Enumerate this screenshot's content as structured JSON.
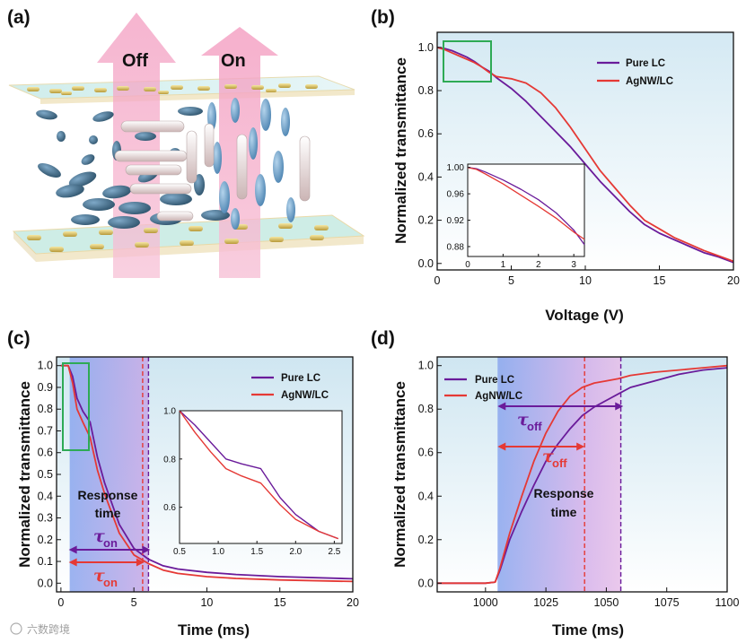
{
  "colors": {
    "pure": "#6a1b9a",
    "agnw": "#e53935",
    "inset_box": "#2eaa55",
    "axis": "#111111"
  },
  "panel_a": {
    "letter": "(a)",
    "off_label": "Off",
    "on_label": "On"
  },
  "watermark": "六数跨境",
  "chart_data": [
    {
      "id": "b",
      "letter": "(b)",
      "type": "line",
      "xlabel": "Voltage (V)",
      "ylabel": "Normalized transmittance",
      "xlim": [
        0,
        20
      ],
      "ylim": [
        -0.03,
        1.07
      ],
      "xticks": [
        0,
        5,
        10,
        15,
        20
      ],
      "yticks": [
        0.0,
        0.2,
        0.4,
        0.6,
        0.8,
        1.0
      ],
      "ytick_labels": [
        "0.0",
        "0.2",
        "0.4",
        "0.6",
        "0.8",
        "1.0"
      ],
      "series": [
        {
          "name": "Pure LC",
          "color": "#6a1b9a",
          "x": [
            0,
            0.5,
            1,
            1.5,
            2,
            2.5,
            3,
            3.5,
            4,
            5,
            6,
            7,
            8,
            9,
            10,
            11,
            12,
            13,
            14,
            15,
            16,
            17,
            18,
            19,
            20
          ],
          "y": [
            1.0,
            0.995,
            0.985,
            0.97,
            0.955,
            0.935,
            0.91,
            0.89,
            0.86,
            0.81,
            0.75,
            0.68,
            0.61,
            0.54,
            0.46,
            0.38,
            0.31,
            0.24,
            0.18,
            0.14,
            0.11,
            0.08,
            0.05,
            0.03,
            0.005
          ]
        },
        {
          "name": "AgNW/LC",
          "color": "#e53935",
          "x": [
            0,
            0.5,
            1,
            1.5,
            2,
            2.5,
            3,
            3.5,
            4,
            5,
            6,
            7,
            8,
            9,
            10,
            11,
            12,
            13,
            14,
            15,
            16,
            17,
            18,
            19,
            20
          ],
          "y": [
            1.0,
            0.99,
            0.975,
            0.96,
            0.945,
            0.93,
            0.91,
            0.885,
            0.865,
            0.855,
            0.835,
            0.79,
            0.72,
            0.63,
            0.53,
            0.43,
            0.35,
            0.27,
            0.2,
            0.16,
            0.12,
            0.09,
            0.06,
            0.035,
            0.01
          ]
        }
      ],
      "legend": "top-right",
      "inset": {
        "xlim": [
          0,
          3.3
        ],
        "ylim": [
          0.865,
          1.005
        ],
        "xticks": [
          0,
          1,
          2,
          3
        ],
        "yticks": [
          0.88,
          0.92,
          0.96,
          1.0
        ],
        "ytick_labels": [
          "0.88",
          "0.92",
          "0.96",
          "1.00"
        ],
        "series": [
          {
            "name": "Pure LC",
            "x": [
              0,
              0.25,
              0.5,
              1,
              1.5,
              2,
              2.5,
              3,
              3.3
            ],
            "y": [
              1.0,
              0.998,
              0.993,
              0.981,
              0.967,
              0.951,
              0.931,
              0.905,
              0.883
            ]
          },
          {
            "name": "AgNW/LC",
            "x": [
              0,
              0.25,
              0.5,
              1,
              1.5,
              2,
              2.5,
              3,
              3.3
            ],
            "y": [
              1.0,
              0.997,
              0.99,
              0.975,
              0.958,
              0.941,
              0.923,
              0.902,
              0.891
            ]
          }
        ]
      }
    },
    {
      "id": "c",
      "letter": "(c)",
      "type": "line",
      "xlabel": "Time (ms)",
      "ylabel": "Normalized transmittance",
      "xlim": [
        -0.3,
        20
      ],
      "ylim": [
        -0.04,
        1.04
      ],
      "xticks": [
        0,
        5,
        10,
        15,
        20
      ],
      "yticks": [
        0.0,
        0.1,
        0.2,
        0.3,
        0.4,
        0.5,
        0.6,
        0.7,
        0.8,
        0.9,
        1.0
      ],
      "ytick_labels": [
        "0.0",
        "0.1",
        "0.2",
        "0.3",
        "0.4",
        "0.5",
        "0.6",
        "0.7",
        "0.8",
        "0.9",
        "1.0"
      ],
      "series": [
        {
          "name": "Pure LC",
          "color": "#6a1b9a",
          "x": [
            0,
            0.5,
            0.8,
            1.1,
            1.5,
            2.0,
            2.5,
            3.0,
            4.0,
            5.0,
            6.0,
            7.0,
            8.0,
            10.0,
            12.0,
            15.0,
            20.0
          ],
          "y": [
            1.0,
            1.0,
            0.95,
            0.85,
            0.79,
            0.74,
            0.58,
            0.46,
            0.27,
            0.16,
            0.11,
            0.08,
            0.065,
            0.05,
            0.04,
            0.03,
            0.02
          ]
        },
        {
          "name": "AgNW/LC",
          "color": "#e53935",
          "x": [
            0,
            0.5,
            0.8,
            1.1,
            1.5,
            2.0,
            2.5,
            3.0,
            4.0,
            5.0,
            6.0,
            7.0,
            8.0,
            10.0,
            12.0,
            15.0,
            20.0
          ],
          "y": [
            1.0,
            1.0,
            0.92,
            0.8,
            0.74,
            0.67,
            0.52,
            0.41,
            0.23,
            0.13,
            0.09,
            0.06,
            0.045,
            0.03,
            0.022,
            0.015,
            0.008
          ]
        }
      ],
      "legend": "top-right",
      "annotations": {
        "response_text": "Response",
        "response_text2": "time",
        "tau_on_purple": {
          "symbol": "τ",
          "sub": "on",
          "end": 6.0
        },
        "tau_on_red": {
          "symbol": "τ",
          "sub": "on",
          "end": 5.6
        },
        "span_start": 0.6,
        "vline_pure": 6.0,
        "vline_agnw": 5.6
      },
      "inset": {
        "xlim": [
          0.5,
          2.6
        ],
        "ylim": [
          0.45,
          1.0
        ],
        "xticks": [
          0.5,
          1.0,
          1.5,
          2.0,
          2.5
        ],
        "yticks": [
          0.6,
          0.8,
          1.0
        ],
        "ytick_labels": [
          "0.6",
          "0.8",
          "1.0"
        ],
        "series": [
          {
            "name": "Pure LC",
            "x": [
              0.5,
              0.7,
              0.9,
              1.1,
              1.3,
              1.55,
              1.8,
              2.0,
              2.3,
              2.55
            ],
            "y": [
              1.0,
              0.94,
              0.87,
              0.8,
              0.78,
              0.76,
              0.64,
              0.57,
              0.5,
              0.47
            ]
          },
          {
            "name": "AgNW/LC",
            "x": [
              0.5,
              0.7,
              0.9,
              1.1,
              1.3,
              1.55,
              1.8,
              2.0,
              2.3,
              2.55
            ],
            "y": [
              1.0,
              0.91,
              0.83,
              0.76,
              0.73,
              0.7,
              0.61,
              0.55,
              0.5,
              0.47
            ]
          }
        ]
      }
    },
    {
      "id": "d",
      "letter": "(d)",
      "type": "line",
      "xlabel": "Time (ms)",
      "ylabel": "Normalized transmittance",
      "xlim": [
        980,
        1100
      ],
      "ylim": [
        -0.04,
        1.04
      ],
      "xticks": [
        1000,
        1025,
        1050,
        1075,
        1100
      ],
      "yticks": [
        0.0,
        0.2,
        0.4,
        0.6,
        0.8,
        1.0
      ],
      "ytick_labels": [
        "0.0",
        "0.2",
        "0.4",
        "0.6",
        "0.8",
        "1.0"
      ],
      "series": [
        {
          "name": "Pure LC",
          "color": "#6a1b9a",
          "x": [
            980,
            1000,
            1004,
            1006,
            1010,
            1015,
            1020,
            1025,
            1030,
            1035,
            1040,
            1045,
            1050,
            1055,
            1060,
            1070,
            1080,
            1090,
            1100
          ],
          "y": [
            0.0,
            0.0,
            0.005,
            0.06,
            0.2,
            0.33,
            0.45,
            0.56,
            0.64,
            0.71,
            0.77,
            0.81,
            0.84,
            0.87,
            0.9,
            0.93,
            0.96,
            0.98,
            0.99
          ]
        },
        {
          "name": "AgNW/LC",
          "color": "#e53935",
          "x": [
            980,
            1000,
            1004,
            1006,
            1010,
            1015,
            1020,
            1025,
            1030,
            1035,
            1040,
            1045,
            1050,
            1055,
            1060,
            1070,
            1080,
            1090,
            1100
          ],
          "y": [
            0.0,
            0.0,
            0.005,
            0.07,
            0.23,
            0.4,
            0.56,
            0.69,
            0.79,
            0.86,
            0.9,
            0.92,
            0.93,
            0.94,
            0.955,
            0.97,
            0.98,
            0.99,
            1.0
          ]
        }
      ],
      "legend": "top-left",
      "annotations": {
        "response_text": "Response",
        "response_text2": "time",
        "tau_off_purple": {
          "symbol": "τ",
          "sub": "off",
          "start": 1005,
          "end": 1057
        },
        "tau_off_red": {
          "symbol": "τ",
          "sub": "off",
          "start": 1005,
          "end": 1041
        },
        "vline_pure": 1056,
        "vline_agnw": 1041
      }
    }
  ]
}
